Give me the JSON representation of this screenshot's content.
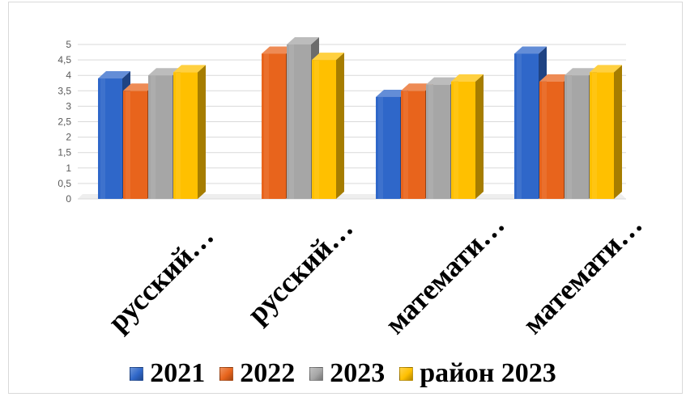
{
  "chart_data": {
    "type": "bar",
    "categories": [
      "русский…",
      "русский…",
      "математи…",
      "математи…"
    ],
    "series": [
      {
        "name": "2021",
        "values": [
          3.9,
          null,
          3.3,
          4.7
        ],
        "color": "#2f67c9"
      },
      {
        "name": "2022",
        "values": [
          3.5,
          4.7,
          3.5,
          3.8
        ],
        "color": "#e8641c"
      },
      {
        "name": "2023",
        "values": [
          4.0,
          5.0,
          3.7,
          4.0
        ],
        "color": "#a6a6a6"
      },
      {
        "name": "район 2023",
        "values": [
          4.1,
          4.5,
          3.8,
          4.1
        ],
        "color": "#ffc000"
      }
    ],
    "y_ticks": [
      "0",
      "0,5",
      "1",
      "1,5",
      "2",
      "2,5",
      "3",
      "3,5",
      "4",
      "4,5",
      "5"
    ],
    "ylim": [
      0,
      5
    ],
    "grid": true,
    "legend_position": "bottom",
    "style": "3d-column"
  }
}
